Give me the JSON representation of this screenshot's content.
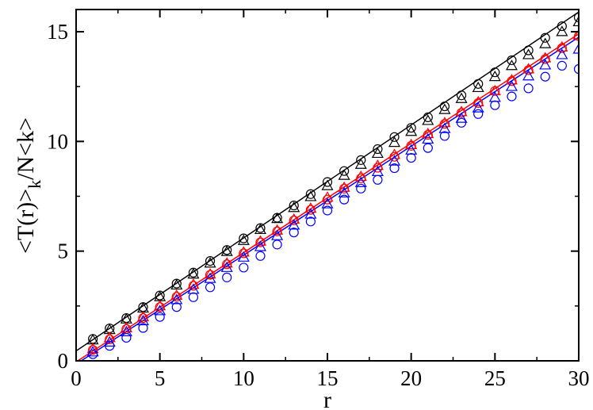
{
  "chart_data": {
    "type": "scatter",
    "title": "",
    "xlabel": "r",
    "ylabel_parts": {
      "main": "<T(r)>",
      "subscript": "k",
      "suffix": "/N<k>"
    },
    "xlim": [
      0,
      30
    ],
    "ylim": [
      0,
      16
    ],
    "x_ticks": [
      0,
      5,
      10,
      15,
      20,
      25,
      30
    ],
    "y_ticks": [
      0,
      5,
      10,
      15
    ],
    "grid": false,
    "legend": "none",
    "x": [
      1,
      2,
      3,
      4,
      5,
      6,
      7,
      8,
      9,
      10,
      11,
      12,
      13,
      14,
      15,
      16,
      17,
      18,
      19,
      20,
      21,
      22,
      23,
      24,
      25,
      26,
      27,
      28,
      29,
      30
    ],
    "series": [
      {
        "color": "#000000",
        "marker": "circle",
        "values": [
          1.0,
          1.48,
          1.95,
          2.45,
          2.98,
          3.52,
          4.02,
          4.55,
          5.05,
          5.58,
          6.05,
          6.52,
          7.08,
          7.6,
          8.15,
          8.65,
          9.15,
          9.65,
          10.2,
          10.62,
          11.1,
          11.6,
          12.1,
          12.62,
          13.15,
          13.7,
          14.15,
          14.72,
          15.25,
          15.65
        ]
      },
      {
        "color": "#000000",
        "marker": "triangle",
        "values": [
          0.95,
          1.42,
          1.9,
          2.4,
          2.92,
          3.45,
          3.95,
          4.45,
          4.98,
          5.48,
          5.98,
          6.48,
          6.98,
          7.48,
          7.98,
          8.45,
          8.95,
          9.45,
          9.95,
          10.45,
          10.95,
          11.45,
          11.95,
          12.45,
          12.95,
          13.45,
          13.95,
          14.45,
          15.0,
          15.45
        ]
      },
      {
        "color": "#ff0000",
        "marker": "circle",
        "values": [
          0.5,
          0.98,
          1.45,
          1.95,
          2.45,
          2.92,
          3.42,
          3.92,
          4.4,
          4.9,
          5.4,
          5.9,
          6.4,
          6.88,
          7.35,
          7.85,
          8.32,
          8.8,
          9.3,
          9.8,
          10.3,
          10.8,
          11.3,
          11.75,
          12.3,
          12.75,
          13.25,
          13.75,
          14.25,
          14.8
        ]
      },
      {
        "color": "#ff0000",
        "marker": "triangle",
        "values": [
          0.55,
          1.05,
          1.5,
          2.0,
          2.5,
          2.98,
          3.48,
          3.95,
          4.45,
          4.95,
          5.45,
          5.95,
          6.45,
          6.95,
          7.45,
          7.9,
          8.4,
          8.9,
          9.4,
          9.85,
          10.35,
          10.85,
          11.35,
          11.8,
          12.3,
          12.8,
          13.3,
          13.8,
          14.3,
          14.85
        ]
      },
      {
        "color": "#0000ff",
        "marker": "circle",
        "values": [
          0.3,
          0.68,
          1.05,
          1.5,
          2.0,
          2.45,
          2.9,
          3.35,
          3.8,
          4.25,
          4.78,
          5.3,
          5.85,
          6.35,
          6.85,
          7.35,
          7.85,
          8.25,
          8.78,
          9.25,
          9.7,
          10.25,
          10.85,
          11.25,
          11.65,
          12.05,
          12.42,
          12.95,
          13.45,
          13.3
        ]
      },
      {
        "color": "#0000ff",
        "marker": "triangle",
        "values": [
          0.4,
          0.85,
          1.32,
          1.82,
          2.28,
          2.78,
          3.25,
          3.75,
          4.25,
          4.72,
          5.2,
          5.7,
          6.18,
          6.68,
          7.15,
          7.65,
          8.12,
          8.62,
          9.1,
          9.6,
          10.1,
          10.58,
          11.05,
          11.52,
          12.0,
          12.5,
          12.98,
          13.48,
          13.95,
          14.2
        ]
      }
    ],
    "fit_lines": [
      {
        "color": "#000000",
        "x": [
          0,
          30
        ],
        "y": [
          0.45,
          15.9
        ]
      },
      {
        "color": "#ff0000",
        "x": [
          0,
          30
        ],
        "y": [
          -0.05,
          14.9
        ]
      },
      {
        "color": "#0000ff",
        "x": [
          0,
          30
        ],
        "y": [
          -0.15,
          14.75
        ]
      }
    ]
  }
}
